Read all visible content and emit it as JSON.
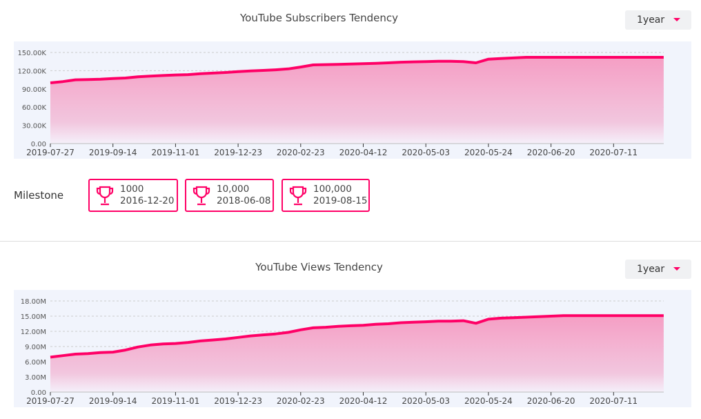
{
  "colors": {
    "accent": "#ff0066",
    "fill_top": "#f59ec4",
    "plot_bg": "#f1f4fc"
  },
  "chart_data": [
    {
      "type": "area",
      "title": "YouTube Subscribers Tendency",
      "range_selector": "1year",
      "x_tick_labels": [
        "2019-07-27",
        "2019-09-14",
        "2019-11-01",
        "2019-12-23",
        "2020-02-23",
        "2020-04-12",
        "2020-05-03",
        "2020-05-24",
        "2020-06-20",
        "2020-07-11"
      ],
      "y_tick_labels": [
        "0.00",
        "30.00K",
        "60.00K",
        "90.00K",
        "120.00K",
        "150.00K"
      ],
      "ylim": [
        0,
        150000
      ],
      "grid": true,
      "unit": "K",
      "values": [
        100,
        102,
        105,
        105.5,
        106,
        107,
        108,
        110,
        111,
        112,
        113,
        113.5,
        115,
        116,
        117,
        118.5,
        119.5,
        120.5,
        121.5,
        123,
        126,
        129.5,
        130,
        130.5,
        131,
        131.5,
        132,
        133,
        134,
        134.5,
        135,
        135.5,
        135.5,
        135,
        133,
        139,
        140,
        141,
        142,
        142,
        142,
        142,
        142,
        142,
        142,
        142,
        142,
        142,
        142,
        142
      ]
    },
    {
      "type": "area",
      "title": "YouTube Views Tendency",
      "range_selector": "1year",
      "x_tick_labels": [
        "2019-07-27",
        "2019-09-14",
        "2019-11-01",
        "2019-12-23",
        "2020-02-23",
        "2020-04-12",
        "2020-05-03",
        "2020-05-24",
        "2020-06-20",
        "2020-07-11"
      ],
      "y_tick_labels": [
        "0.00",
        "3.00M",
        "6.00M",
        "9.00M",
        "12.00M",
        "15.00M",
        "18.00M"
      ],
      "ylim": [
        0,
        18000000
      ],
      "grid": true,
      "unit": "M",
      "values": [
        6.9,
        7.2,
        7.5,
        7.6,
        7.8,
        7.9,
        8.3,
        8.9,
        9.3,
        9.5,
        9.6,
        9.8,
        10.1,
        10.3,
        10.5,
        10.8,
        11.1,
        11.3,
        11.5,
        11.8,
        12.3,
        12.7,
        12.8,
        13.0,
        13.1,
        13.2,
        13.4,
        13.5,
        13.7,
        13.8,
        13.9,
        14.0,
        14.0,
        14.1,
        13.6,
        14.4,
        14.6,
        14.7,
        14.8,
        14.9,
        15.0,
        15.1,
        15.1,
        15.1,
        15.1,
        15.1,
        15.1,
        15.1,
        15.1,
        15.1
      ]
    }
  ],
  "milestone": {
    "label": "Milestone",
    "items": [
      {
        "count": "1000",
        "date": "2016-12-20",
        "icon": "trophy-icon"
      },
      {
        "count": "10,000",
        "date": "2018-06-08",
        "icon": "trophy-icon"
      },
      {
        "count": "100,000",
        "date": "2019-08-15",
        "icon": "trophy-icon"
      }
    ]
  }
}
